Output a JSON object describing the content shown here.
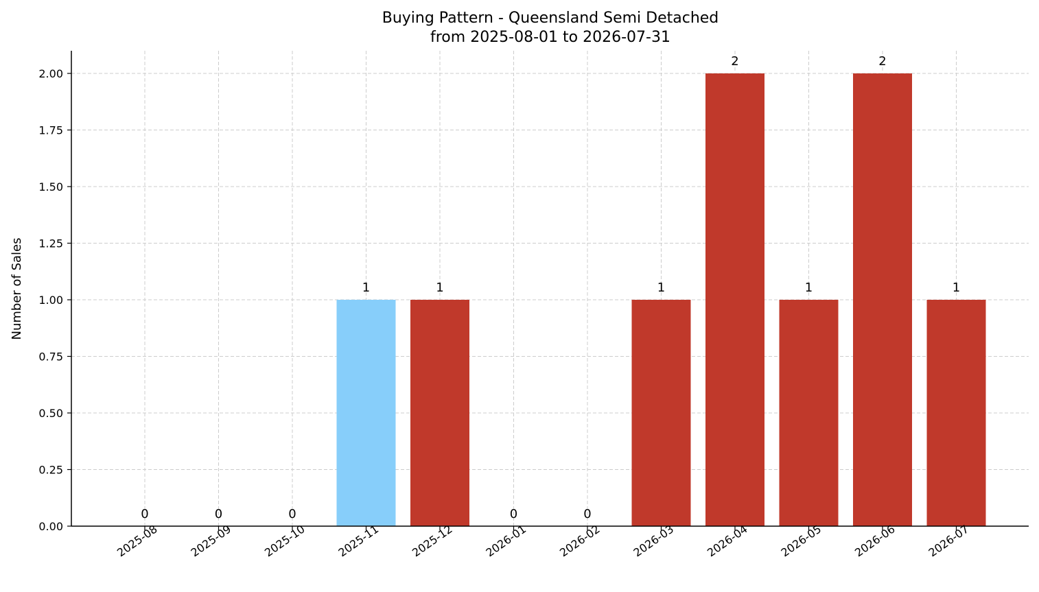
{
  "chart_data": {
    "type": "bar",
    "title": "Buying Pattern - Queensland Semi Detached",
    "subtitle": "from 2025-08-01 to 2026-07-31",
    "xlabel": "",
    "ylabel": "Number of Sales",
    "categories": [
      "2025-08",
      "2025-09",
      "2025-10",
      "2025-11",
      "2025-12",
      "2026-01",
      "2026-02",
      "2026-03",
      "2026-04",
      "2026-05",
      "2026-06",
      "2026-07"
    ],
    "values": [
      0,
      0,
      0,
      1,
      1,
      0,
      0,
      1,
      2,
      1,
      2,
      1
    ],
    "data_labels": [
      "0",
      "0",
      "0",
      "1",
      "1",
      "0",
      "0",
      "1",
      "2",
      "1",
      "2",
      "1"
    ],
    "highlight_index": 3,
    "bar_color": "#c0392b",
    "highlight_color": "#87cefa",
    "ylim": [
      0,
      2.1
    ],
    "yticks": [
      0,
      0.25,
      0.5,
      0.75,
      1.0,
      1.25,
      1.5,
      1.75,
      2.0
    ],
    "ytick_labels": [
      "0.00",
      "0.25",
      "0.50",
      "0.75",
      "1.00",
      "1.25",
      "1.50",
      "1.75",
      "2.00"
    ],
    "grid": true,
    "legend": "none"
  }
}
